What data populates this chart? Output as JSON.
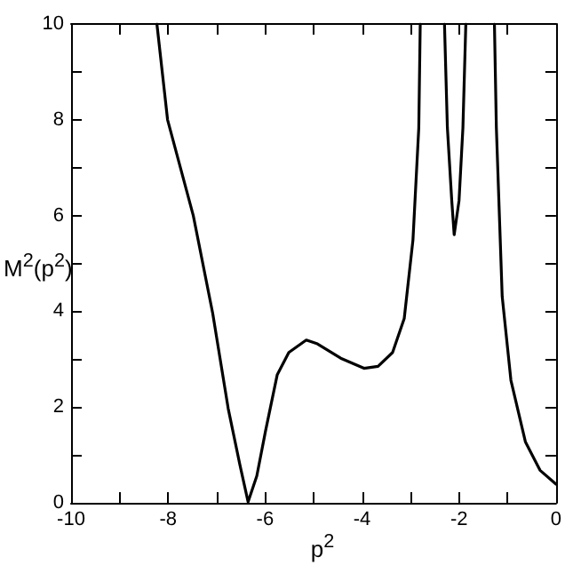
{
  "chart_data": {
    "type": "line",
    "xlabel": "p$^{2}$",
    "ylabel": "M$^{2}$(p$^{2}$)",
    "x": [
      -8.23,
      -8.01,
      -7.48,
      -7.08,
      -6.76,
      -6.52,
      -6.35,
      -6.17,
      -5.99,
      -5.75,
      -5.51,
      -5.15,
      -4.92,
      -4.44,
      -3.96,
      -3.67,
      -3.37,
      -3.13,
      -2.95,
      -2.83,
      -2.8,
      -2.55,
      -2.3,
      -2.24,
      -2.15,
      -2.1,
      -2.0,
      -1.92,
      -1.86,
      -1.56,
      -1.27,
      -1.23,
      -1.11,
      -0.93,
      -0.63,
      -0.33,
      0
    ],
    "series": [
      {
        "color": "#000000",
        "values": [
          10,
          8.0,
          6.0,
          3.96,
          1.97,
          0.8,
          0.02,
          0.56,
          1.5,
          2.67,
          3.14,
          3.4,
          3.32,
          3.02,
          2.81,
          2.85,
          3.14,
          3.85,
          5.49,
          7.83,
          10,
          null,
          10,
          7.83,
          6.31,
          5.6,
          6.31,
          7.83,
          10,
          null,
          10,
          7.83,
          4.31,
          2.56,
          1.27,
          0.68,
          0.39
        ]
      }
    ],
    "xlim": [
      -10,
      0
    ],
    "xticks": [
      -10,
      -8,
      -6,
      -4,
      -2,
      0
    ],
    "ylim": [
      0,
      10
    ],
    "yticks": [
      0,
      2,
      4,
      6,
      8,
      10
    ],
    "grid": false,
    "marker": "none",
    "line_style": "solid"
  }
}
